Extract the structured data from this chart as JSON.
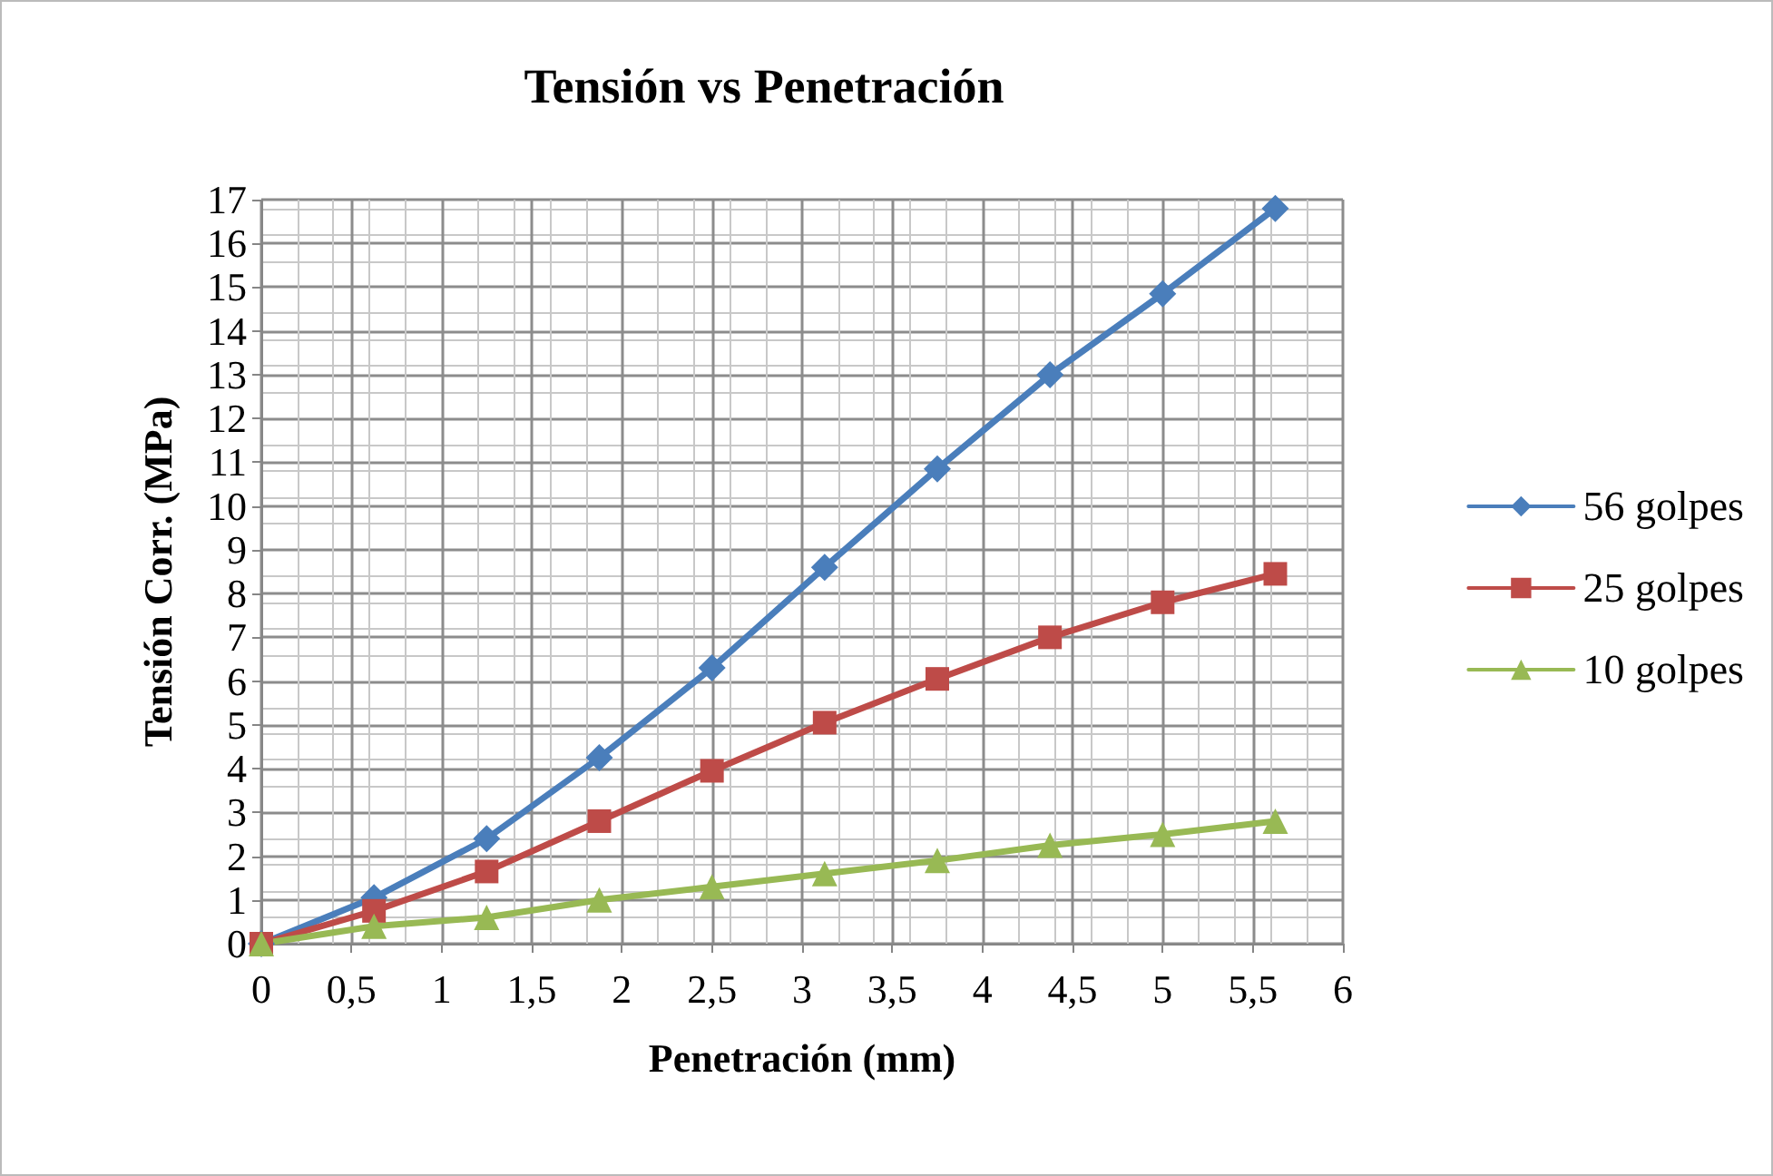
{
  "chart_data": {
    "type": "line",
    "title": "Tensión vs Penetración",
    "xlabel": "Penetración (mm)",
    "ylabel": "Tensión Corr. (MPa)",
    "x": [
      0,
      0.625,
      1.25,
      1.875,
      2.5,
      3.125,
      3.75,
      4.375,
      5,
      5.625
    ],
    "series": [
      {
        "name": "56 golpes",
        "color": "#4a7ebb",
        "marker": "diamond",
        "values": [
          0,
          1.05,
          2.4,
          4.25,
          6.3,
          8.6,
          10.85,
          13.0,
          14.85,
          16.8
        ]
      },
      {
        "name": "25 golpes",
        "color": "#be4b48",
        "marker": "square",
        "values": [
          0,
          0.75,
          1.65,
          2.8,
          3.95,
          5.05,
          6.05,
          7.0,
          7.8,
          8.45
        ]
      },
      {
        "name": "10 golpes",
        "color": "#98b954",
        "marker": "triangle",
        "values": [
          0,
          0.4,
          0.6,
          1.0,
          1.3,
          1.6,
          1.9,
          2.25,
          2.5,
          2.8
        ]
      }
    ],
    "xlim": [
      0,
      6
    ],
    "xticks": [
      0,
      {
        "value": 0.5,
        "label": "0,5"
      },
      1,
      {
        "value": 1.5,
        "label": "1,5"
      },
      2,
      {
        "value": 2.5,
        "label": "2,5"
      },
      3,
      {
        "value": 3.5,
        "label": "3,5"
      },
      4,
      {
        "value": 4.5,
        "label": "4,5"
      },
      5,
      {
        "value": 5.5,
        "label": "5,5"
      },
      6
    ],
    "ylim": [
      0,
      17
    ],
    "yticks": [
      0,
      1,
      2,
      3,
      4,
      5,
      6,
      7,
      8,
      9,
      10,
      11,
      12,
      13,
      14,
      15,
      16,
      17
    ],
    "grid": true,
    "legend": "right",
    "line_style": "solid"
  }
}
